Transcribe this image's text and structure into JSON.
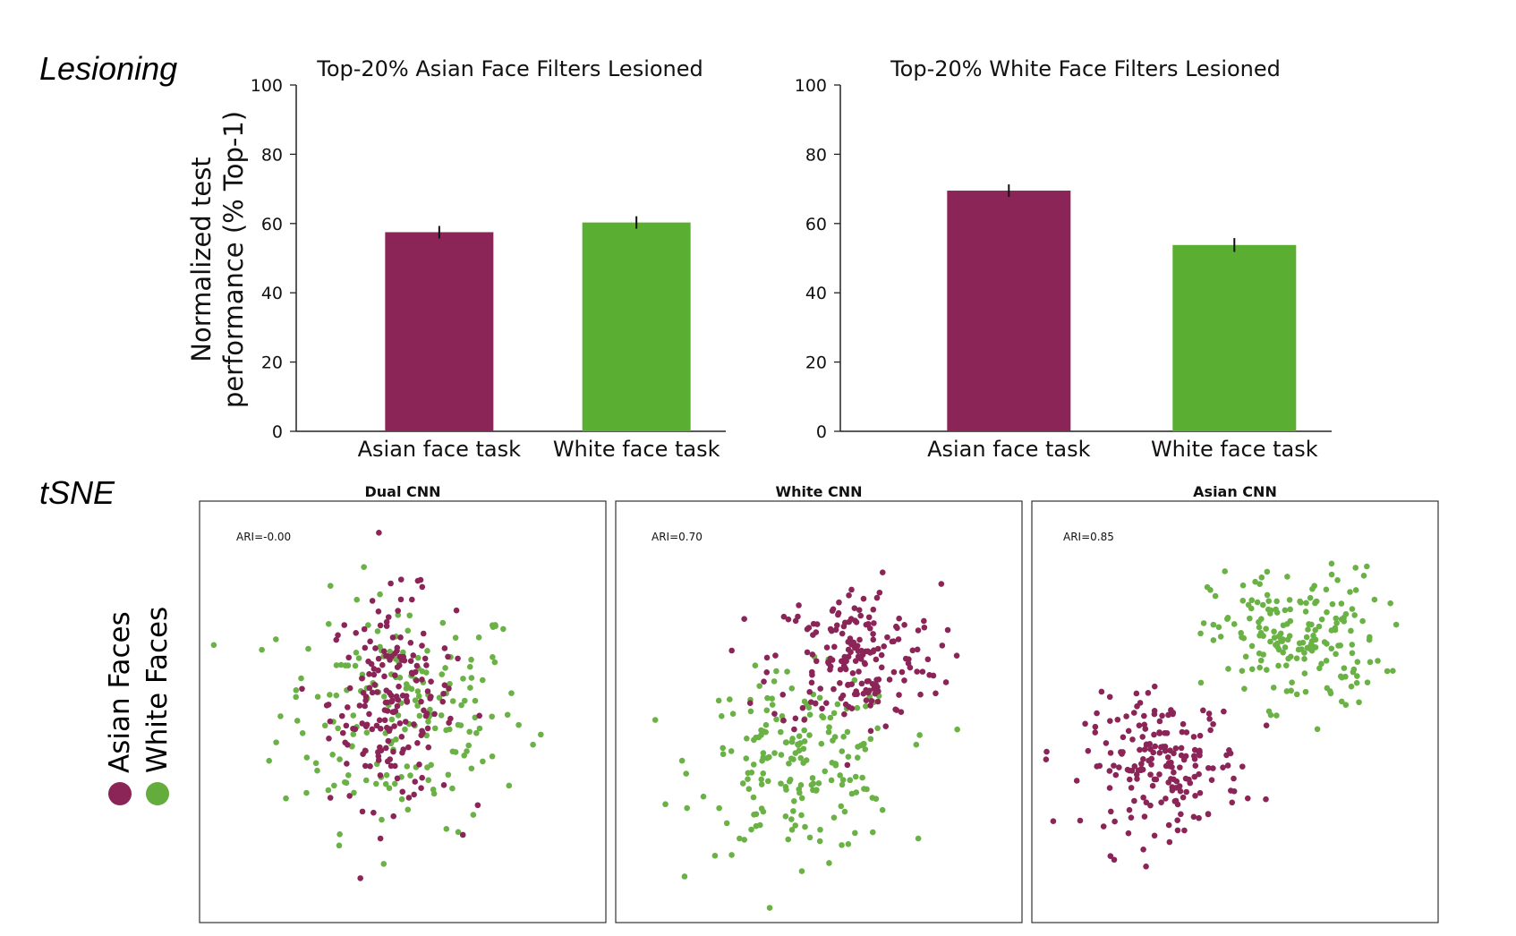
{
  "section_labels": {
    "lesioning": "Lesioning",
    "tsne": "tSNE"
  },
  "legend": {
    "items": [
      {
        "label": "Asian Faces",
        "color": "#8b2558"
      },
      {
        "label": "White Faces",
        "color": "#64ad3d"
      }
    ]
  },
  "colors": {
    "asian": "#8b2558",
    "white": "#5aaf32",
    "white_points": "#6ab245"
  },
  "chart_data": [
    {
      "type": "bar",
      "title": "Top-20% Asian Face Filters Lesioned",
      "ylabel": "Normalized test\nperformance (% Top-1)",
      "categories": [
        "Asian face task",
        "White face task"
      ],
      "values": [
        57.5,
        60.3
      ],
      "errors": [
        1.8,
        1.8
      ],
      "bar_colors": [
        "#8b2558",
        "#5aaf32"
      ],
      "ylim": [
        0,
        100
      ],
      "yticks": [
        0,
        20,
        40,
        60,
        80,
        100
      ]
    },
    {
      "type": "bar",
      "title": "Top-20% White Face Filters Lesioned",
      "ylabel": "",
      "categories": [
        "Asian face task",
        "White face task"
      ],
      "values": [
        69.5,
        53.8
      ],
      "errors": [
        1.8,
        2.0
      ],
      "bar_colors": [
        "#8b2558",
        "#5aaf32"
      ],
      "ylim": [
        0,
        100
      ],
      "yticks": [
        0,
        20,
        40,
        60,
        80,
        100
      ]
    },
    {
      "type": "scatter",
      "title": "Dual CNN",
      "annotation": "ARI=-0.00",
      "xlim": [
        -1,
        1
      ],
      "ylim": [
        -1,
        1
      ],
      "approx_points_per_class": 190,
      "series": [
        {
          "name": "Asian Faces",
          "center": [
            -0.05,
            0.05
          ],
          "spread": [
            0.28,
            0.45
          ]
        },
        {
          "name": "White Faces",
          "center": [
            0.0,
            0.0
          ],
          "spread": [
            0.55,
            0.5
          ]
        }
      ]
    },
    {
      "type": "scatter",
      "title": "White CNN",
      "annotation": "ARI=0.70",
      "xlim": [
        -1,
        1
      ],
      "ylim": [
        -1,
        1
      ],
      "approx_points_per_class": 190,
      "series": [
        {
          "name": "Asian Faces",
          "center": [
            0.18,
            0.25
          ],
          "spread": [
            0.38,
            0.32
          ]
        },
        {
          "name": "White Faces",
          "center": [
            -0.1,
            -0.25
          ],
          "spread": [
            0.45,
            0.38
          ]
        }
      ]
    },
    {
      "type": "scatter",
      "title": "Asian CNN",
      "annotation": "ARI=0.85",
      "xlim": [
        -1,
        1
      ],
      "ylim": [
        -1,
        1
      ],
      "approx_points_per_class": 190,
      "series": [
        {
          "name": "Asian Faces",
          "center": [
            -0.35,
            -0.25
          ],
          "spread": [
            0.35,
            0.28
          ]
        },
        {
          "name": "White Faces",
          "center": [
            0.3,
            0.35
          ],
          "spread": [
            0.38,
            0.3
          ]
        }
      ]
    }
  ]
}
